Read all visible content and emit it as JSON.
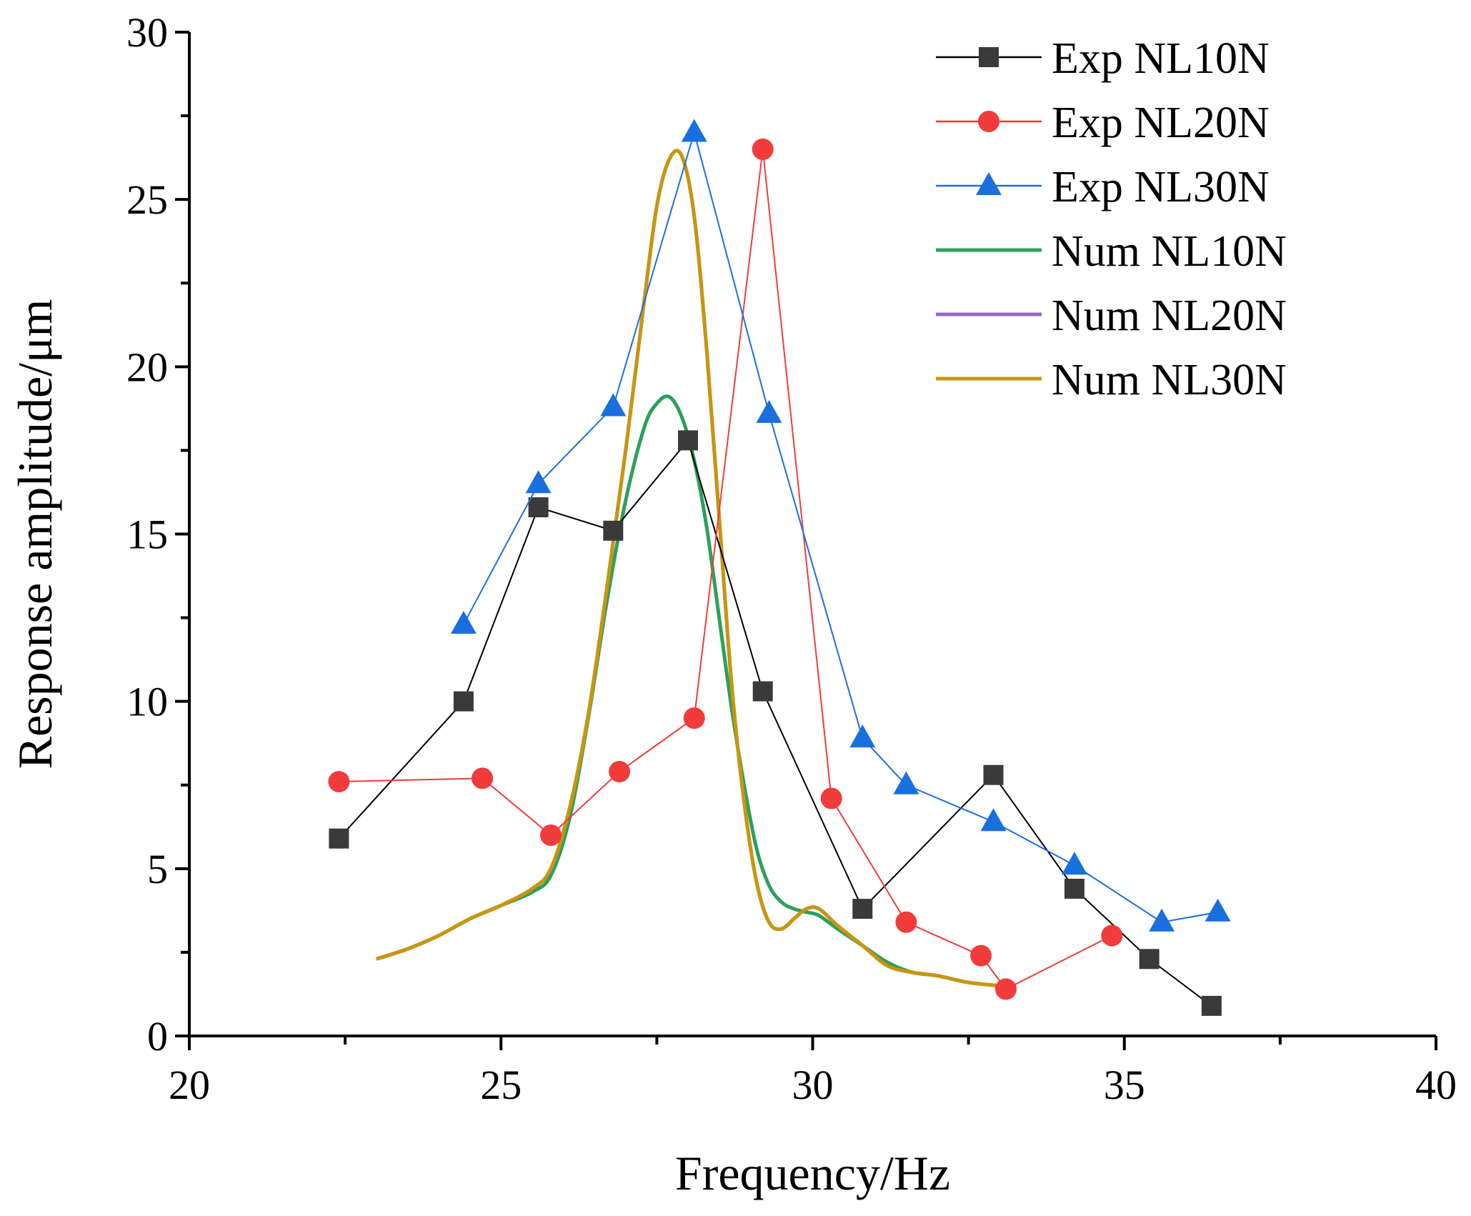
{
  "chart_data": {
    "type": "line",
    "title": "",
    "xlabel": "Frequency/Hz",
    "ylabel": "Response amplitude/μm",
    "xlim": [
      20,
      40
    ],
    "ylim": [
      0,
      30
    ],
    "xticks": [
      20,
      25,
      30,
      35,
      40
    ],
    "yticks": [
      0,
      5,
      10,
      15,
      20,
      25,
      30
    ],
    "legend_position": "top-right",
    "series": [
      {
        "name": "Exp NL10N",
        "kind": "experimental",
        "marker": "square",
        "color": "#000000",
        "marker_color": "#3a3a3a",
        "x": [
          22.4,
          24.4,
          25.6,
          26.8,
          28.0,
          29.2,
          30.8,
          32.9,
          34.2,
          35.4,
          36.4
        ],
        "y": [
          5.9,
          10.0,
          15.8,
          15.1,
          17.8,
          10.3,
          3.8,
          7.8,
          4.4,
          2.3,
          0.9
        ]
      },
      {
        "name": "Exp NL20N",
        "kind": "experimental",
        "marker": "circle",
        "color": "#f23b3b",
        "marker_color": "#f23b3b",
        "x": [
          22.4,
          24.7,
          25.8,
          26.9,
          28.1,
          29.2,
          30.3,
          31.5,
          32.7,
          33.1,
          34.8
        ],
        "y": [
          7.6,
          7.7,
          6.0,
          7.9,
          9.5,
          26.5,
          7.1,
          3.4,
          2.4,
          1.4,
          3.0
        ]
      },
      {
        "name": "Exp NL30N",
        "kind": "experimental",
        "marker": "triangle",
        "color": "#1a6fdf",
        "marker_color": "#1a6fdf",
        "x": [
          24.4,
          25.6,
          26.8,
          28.1,
          29.3,
          30.8,
          31.5,
          32.9,
          34.2,
          35.6,
          36.5
        ],
        "y": [
          12.3,
          16.5,
          18.8,
          27.0,
          18.6,
          8.9,
          7.5,
          6.4,
          5.1,
          3.4,
          3.7
        ]
      },
      {
        "name": "Num NL10N",
        "kind": "numerical",
        "marker": "none",
        "color": "#2ca05a",
        "x": [
          23.0,
          23.5,
          24.0,
          24.5,
          25.0,
          25.5,
          25.8,
          26.1,
          26.4,
          26.7,
          27.0,
          27.3,
          27.5,
          27.7,
          27.9,
          28.1,
          28.3,
          28.5,
          28.7,
          28.9,
          29.1,
          29.3,
          29.5,
          29.7,
          29.9,
          30.1,
          30.4,
          30.8,
          31.2,
          31.6,
          32.0,
          32.5,
          33.0
        ],
        "y": [
          2.3,
          2.6,
          3.0,
          3.5,
          3.9,
          4.3,
          4.8,
          6.5,
          9.5,
          13.0,
          16.0,
          18.2,
          18.9,
          19.1,
          18.5,
          17.2,
          15.2,
          12.5,
          9.8,
          7.5,
          5.6,
          4.5,
          4.0,
          3.8,
          3.7,
          3.6,
          3.2,
          2.7,
          2.2,
          1.9,
          1.8,
          1.6,
          1.5
        ]
      },
      {
        "name": "Num NL20N",
        "kind": "numerical",
        "marker": "none",
        "color": "#9966cc",
        "x": [
          23.0,
          23.5,
          24.0,
          24.5,
          25.0,
          25.5,
          25.8,
          26.1,
          26.4,
          26.7,
          27.0,
          27.3,
          27.5,
          27.7,
          27.9,
          28.1,
          28.3,
          28.5,
          28.7,
          28.9,
          29.1,
          29.3,
          29.5,
          29.7,
          29.9,
          30.1,
          30.4,
          30.8,
          31.2,
          31.6,
          32.0,
          32.5,
          33.0
        ],
        "y": [
          2.3,
          2.6,
          3.0,
          3.5,
          3.9,
          4.4,
          5.0,
          6.8,
          9.6,
          13.4,
          17.5,
          22.0,
          24.8,
          26.2,
          26.3,
          24.5,
          20.5,
          15.5,
          10.5,
          7.0,
          4.6,
          3.4,
          3.2,
          3.5,
          3.8,
          3.8,
          3.3,
          2.7,
          2.1,
          1.9,
          1.8,
          1.6,
          1.5
        ]
      },
      {
        "name": "Num NL30N",
        "kind": "numerical",
        "marker": "none",
        "color": "#c8960c",
        "x": [
          23.0,
          23.5,
          24.0,
          24.5,
          25.0,
          25.5,
          25.8,
          26.1,
          26.4,
          26.7,
          27.0,
          27.3,
          27.5,
          27.7,
          27.9,
          28.1,
          28.3,
          28.5,
          28.7,
          28.9,
          29.1,
          29.3,
          29.5,
          29.7,
          29.9,
          30.1,
          30.4,
          30.8,
          31.2,
          31.6,
          32.0,
          32.5,
          33.0
        ],
        "y": [
          2.3,
          2.6,
          3.0,
          3.5,
          3.9,
          4.4,
          5.0,
          6.8,
          9.6,
          13.4,
          17.5,
          22.0,
          24.8,
          26.2,
          26.3,
          24.5,
          20.5,
          15.5,
          10.5,
          7.0,
          4.6,
          3.4,
          3.2,
          3.5,
          3.8,
          3.8,
          3.3,
          2.7,
          2.1,
          1.9,
          1.8,
          1.6,
          1.5
        ]
      }
    ]
  }
}
